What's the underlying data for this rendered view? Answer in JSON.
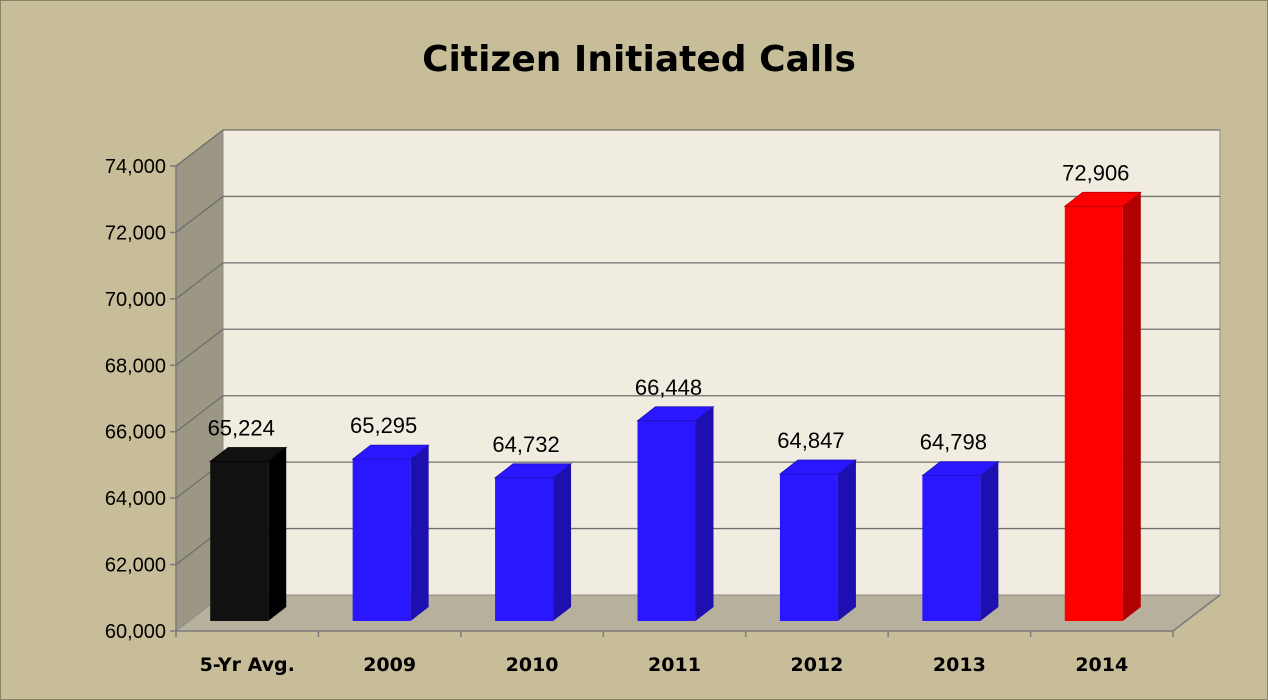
{
  "chart_data": {
    "type": "bar",
    "title": "Citizen Initiated Calls",
    "xlabel": "",
    "ylabel": "",
    "categories": [
      "5-Yr Avg.",
      "2009",
      "2010",
      "2011",
      "2012",
      "2013",
      "2014"
    ],
    "values": [
      65224,
      65295,
      64732,
      66448,
      64847,
      64798,
      72906
    ],
    "data_labels": [
      "65,224",
      "65,295",
      "64,732",
      "66,448",
      "64,847",
      "64,798",
      "72,906"
    ],
    "ylim": [
      60000,
      74000
    ],
    "yticks": [
      60000,
      62000,
      64000,
      66000,
      68000,
      70000,
      72000,
      74000
    ],
    "ytick_labels": [
      "60,000",
      "62,000",
      "64,000",
      "66,000",
      "68,000",
      "70,000",
      "72,000",
      "74,000"
    ],
    "bar_colors": [
      "#111111",
      "#2a17ff",
      "#2a17ff",
      "#2a17ff",
      "#2a17ff",
      "#2a17ff",
      "#ff0000"
    ],
    "bar_side_colors": [
      "#000000",
      "#1e0fb0",
      "#1e0fb0",
      "#1e0fb0",
      "#1e0fb0",
      "#1e0fb0",
      "#b00000"
    ],
    "grid": true,
    "legend": "none",
    "style": "3d-column",
    "colors": {
      "background": "#c7bd99",
      "plot_back_wall": "#f0ede0",
      "plot_side_wall": "#9c9684",
      "plot_floor": "#b7b09d",
      "gridline": "#6e6e6e"
    }
  }
}
